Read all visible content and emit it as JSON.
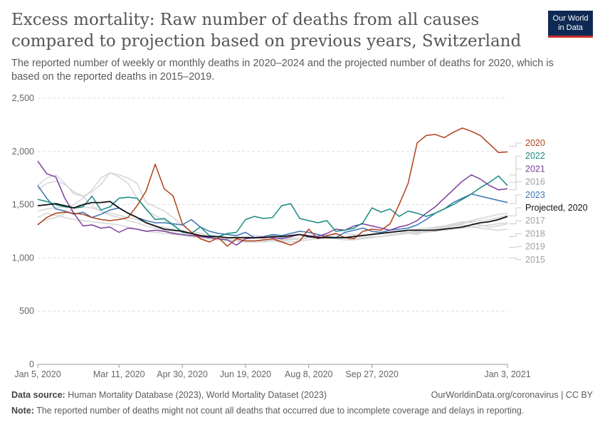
{
  "header": {
    "title": "Excess mortality: Raw number of deaths from all causes compared to projection based on previous years, Switzerland",
    "subtitle": "The reported number of weekly or monthly deaths in 2020–2024 and the projected number of deaths for 2020, which is based on the reported deaths in 2015–2019."
  },
  "logo": {
    "line1": "Our World",
    "line2": "in Data",
    "bg": "#0e2a54",
    "accent": "#c9302c"
  },
  "footer": {
    "source_label": "Data source:",
    "source_text": "Human Mortality Database (2023), World Mortality Dataset (2023)",
    "url": "OurWorldinData.org/coronavirus | CC BY",
    "note_label": "Note:",
    "note_text": "The reported number of deaths might not count all deaths that occurred due to incomplete coverage and delays in reporting."
  },
  "chart_data": {
    "type": "line",
    "x_unit": "week",
    "xticks": [
      "Jan 5, 2020",
      "Mar 11, 2020",
      "Apr 30, 2020",
      "Jun 19, 2020",
      "Aug 8, 2020",
      "Sep 27, 2020",
      "Jan 3, 2021"
    ],
    "xtick_weeks": [
      1,
      10,
      17,
      24,
      31,
      38,
      53
    ],
    "x_range": [
      1,
      53
    ],
    "yticks": [
      "0",
      "500",
      "1,000",
      "1,500",
      "2,000",
      "2,500"
    ],
    "ytick_values": [
      0,
      500,
      1000,
      1500,
      2000,
      2500
    ],
    "ylim": [
      0,
      2500
    ],
    "grid": true,
    "legend_placement": "right end labels",
    "series": [
      {
        "name": "2015",
        "color": "#d6d6d6",
        "label_value": 1000,
        "values": [
          1640,
          1700,
          1720,
          1690,
          1620,
          1580,
          1490,
          1440,
          1420,
          1400,
          1380,
          1360,
          1330,
          1300,
          1290,
          1270,
          1250,
          1220,
          1200,
          1190,
          1180,
          1170,
          1160,
          1150,
          1150,
          1150,
          1160,
          1160,
          1170,
          1180,
          1190,
          1200,
          1190,
          1180,
          1170,
          1170,
          1180,
          1190,
          1200,
          1220,
          1230,
          1240,
          1250,
          1260,
          1280,
          1290,
          1310,
          1330,
          1350,
          1370,
          1390,
          1410,
          1420
        ]
      },
      {
        "name": "2016",
        "color": "#d6d6d6",
        "label_value": 1640,
        "values": [
          1380,
          1420,
          1400,
          1380,
          1360,
          1350,
          1340,
          1330,
          1320,
          1310,
          1290,
          1270,
          1250,
          1240,
          1230,
          1220,
          1210,
          1200,
          1190,
          1180,
          1180,
          1170,
          1170,
          1160,
          1160,
          1160,
          1170,
          1170,
          1180,
          1180,
          1190,
          1190,
          1200,
          1200,
          1200,
          1210,
          1210,
          1220,
          1230,
          1240,
          1250,
          1260,
          1270,
          1280,
          1290,
          1300,
          1310,
          1320,
          1340,
          1350,
          1360,
          1380,
          1400
        ]
      },
      {
        "name": "2017",
        "color": "#d6d6d6",
        "label_value": 1320,
        "values": [
          1680,
          1750,
          1780,
          1700,
          1600,
          1580,
          1620,
          1690,
          1800,
          1780,
          1750,
          1700,
          1520,
          1480,
          1440,
          1380,
          1300,
          1250,
          1230,
          1210,
          1200,
          1180,
          1190,
          1200,
          1210,
          1200,
          1220,
          1190,
          1180,
          1170,
          1190,
          1200,
          1210,
          1220,
          1230,
          1220,
          1210,
          1230,
          1240,
          1240,
          1250,
          1230,
          1220,
          1250,
          1280,
          1300,
          1320,
          1340,
          1330,
          1310,
          1290,
          1300,
          1320
        ]
      },
      {
        "name": "2018",
        "color": "#d6d6d6",
        "label_value": 1200,
        "values": [
          1440,
          1460,
          1470,
          1480,
          1500,
          1560,
          1640,
          1750,
          1800,
          1760,
          1700,
          1560,
          1450,
          1400,
          1350,
          1300,
          1260,
          1220,
          1200,
          1190,
          1180,
          1190,
          1200,
          1190,
          1180,
          1200,
          1210,
          1200,
          1190,
          1180,
          1200,
          1210,
          1200,
          1190,
          1200,
          1210,
          1220,
          1220,
          1230,
          1240,
          1250,
          1240,
          1230,
          1250,
          1270,
          1280,
          1300,
          1310,
          1290,
          1280,
          1270,
          1260,
          1270
        ]
      },
      {
        "name": "2019",
        "color": "#d6d6d6",
        "label_value": 1100,
        "values": [
          1320,
          1360,
          1380,
          1420,
          1460,
          1480,
          1470,
          1440,
          1400,
          1380,
          1350,
          1330,
          1300,
          1280,
          1260,
          1240,
          1220,
          1200,
          1190,
          1180,
          1170,
          1160,
          1160,
          1150,
          1150,
          1160,
          1160,
          1150,
          1150,
          1160,
          1170,
          1180,
          1190,
          1180,
          1170,
          1180,
          1190,
          1200,
          1200,
          1210,
          1220,
          1230,
          1240,
          1240,
          1250,
          1260,
          1270,
          1280,
          1290,
          1300,
          1310,
          1320,
          1330
        ]
      },
      {
        "name": "2023",
        "color": "#3a75b6",
        "label_value": 1510,
        "values": [
          1680,
          1560,
          1460,
          1440,
          1410,
          1430,
          1380,
          1410,
          1450,
          1470,
          1420,
          1380,
          1350,
          1330,
          1330,
          1320,
          1310,
          1360,
          1290,
          1250,
          1230,
          1220,
          1210,
          1240,
          1190,
          1200,
          1220,
          1210,
          1230,
          1250,
          1240,
          1220,
          1200,
          1190,
          1240,
          1260,
          1280,
          1250,
          1240,
          1260,
          1270,
          1280,
          1310,
          1360,
          1420,
          1460,
          1520,
          1560,
          1600,
          1580,
          1560,
          1540,
          1520
        ]
      },
      {
        "name": "2021",
        "color": "#7c3f9e",
        "label_value": 1780,
        "values": [
          1910,
          1790,
          1760,
          1560,
          1420,
          1300,
          1310,
          1280,
          1290,
          1240,
          1280,
          1270,
          1250,
          1260,
          1250,
          1230,
          1220,
          1210,
          1200,
          1190,
          1180,
          1170,
          1120,
          1180,
          1190,
          1200,
          1190,
          1180,
          1200,
          1220,
          1210,
          1200,
          1230,
          1270,
          1260,
          1300,
          1320,
          1300,
          1280,
          1260,
          1290,
          1310,
          1350,
          1420,
          1480,
          1560,
          1640,
          1720,
          1780,
          1740,
          1680,
          1640,
          1650
        ]
      },
      {
        "name": "2022",
        "color": "#168a80",
        "label_value": 1710,
        "values": [
          1550,
          1530,
          1500,
          1480,
          1470,
          1480,
          1580,
          1450,
          1480,
          1560,
          1570,
          1560,
          1460,
          1360,
          1370,
          1310,
          1240,
          1230,
          1290,
          1210,
          1200,
          1230,
          1240,
          1360,
          1390,
          1370,
          1380,
          1490,
          1510,
          1370,
          1350,
          1330,
          1350,
          1250,
          1260,
          1280,
          1330,
          1470,
          1430,
          1460,
          1390,
          1440,
          1420,
          1390,
          1420,
          1460,
          1500,
          1550,
          1600,
          1660,
          1710,
          1770,
          1680
        ]
      },
      {
        "name": "2020",
        "color": "#b0401b",
        "label_value": 2050,
        "values": [
          1310,
          1380,
          1420,
          1430,
          1420,
          1410,
          1380,
          1360,
          1350,
          1360,
          1380,
          1490,
          1630,
          1880,
          1650,
          1580,
          1320,
          1240,
          1180,
          1150,
          1190,
          1110,
          1180,
          1160,
          1160,
          1170,
          1180,
          1150,
          1120,
          1160,
          1270,
          1180,
          1210,
          1230,
          1190,
          1180,
          1250,
          1270,
          1260,
          1320,
          1500,
          1700,
          2080,
          2150,
          2160,
          2130,
          2180,
          2220,
          2190,
          2150,
          2070,
          1990,
          1995
        ]
      },
      {
        "name": "Projected, 2020",
        "color": "#111111",
        "label_value": 1395,
        "values": [
          1490,
          1500,
          1510,
          1490,
          1470,
          1500,
          1520,
          1520,
          1530,
          1470,
          1420,
          1380,
          1330,
          1300,
          1270,
          1260,
          1250,
          1230,
          1210,
          1200,
          1200,
          1190,
          1190,
          1190,
          1190,
          1190,
          1200,
          1200,
          1210,
          1220,
          1200,
          1190,
          1190,
          1190,
          1190,
          1200,
          1210,
          1220,
          1230,
          1240,
          1250,
          1260,
          1260,
          1260,
          1260,
          1270,
          1280,
          1290,
          1310,
          1330,
          1340,
          1360,
          1390
        ]
      }
    ],
    "label_order": [
      "2020",
      "2022",
      "2021",
      "2016",
      "2023",
      "Projected, 2020",
      "2017",
      "2018",
      "2019",
      "2015"
    ]
  }
}
